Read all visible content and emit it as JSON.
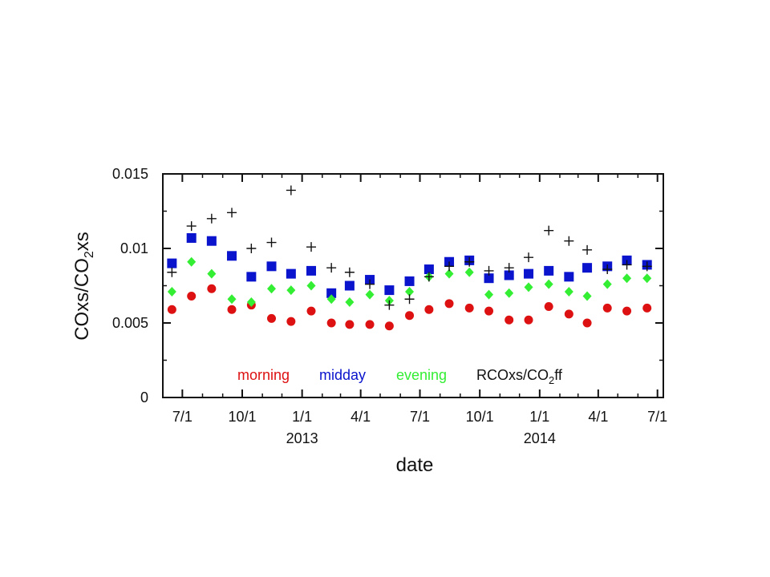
{
  "chart_data": {
    "type": "scatter",
    "title": "",
    "xlabel": "date",
    "ylabel_main": "COxs/CO",
    "ylabel_sub": "2",
    "ylabel_tail": "xs",
    "xlim": [
      "2012-06-01",
      "2014-07-10"
    ],
    "ylim": [
      0,
      0.015
    ],
    "y_ticks": [
      {
        "value": 0,
        "label": "0"
      },
      {
        "value": 0.005,
        "label": "0.005"
      },
      {
        "value": 0.01,
        "label": "0.01"
      },
      {
        "value": 0.015,
        "label": "0.015"
      }
    ],
    "x_ticks": [
      {
        "date": "2012-07-01",
        "label": "7/1"
      },
      {
        "date": "2012-10-01",
        "label": "10/1"
      },
      {
        "date": "2013-01-01",
        "label": "1/1"
      },
      {
        "date": "2013-04-01",
        "label": "4/1"
      },
      {
        "date": "2013-07-01",
        "label": "7/1"
      },
      {
        "date": "2013-10-01",
        "label": "10/1"
      },
      {
        "date": "2014-01-01",
        "label": "1/1"
      },
      {
        "date": "2014-04-01",
        "label": "4/1"
      },
      {
        "date": "2014-07-01",
        "label": "7/1"
      }
    ],
    "year_labels": [
      {
        "date": "2013-01-01",
        "label": "2013"
      },
      {
        "date": "2014-01-01",
        "label": "2014"
      }
    ],
    "grid": false,
    "legend_position": "bottom-inside",
    "x": [
      "2012-06-15",
      "2012-07-15",
      "2012-08-15",
      "2012-09-15",
      "2012-10-15",
      "2012-11-15",
      "2012-12-15",
      "2013-01-15",
      "2013-02-15",
      "2013-03-15",
      "2013-04-15",
      "2013-05-15",
      "2013-06-15",
      "2013-07-15",
      "2013-08-15",
      "2013-09-15",
      "2013-10-15",
      "2013-11-15",
      "2013-12-15",
      "2014-01-15",
      "2014-02-15",
      "2014-03-15",
      "2014-04-15",
      "2014-05-15",
      "2014-06-15"
    ],
    "series": [
      {
        "name": "morning",
        "color": "#dd1111",
        "marker": "circle",
        "values": [
          0.0059,
          0.0068,
          0.0073,
          0.0059,
          0.0062,
          0.0053,
          0.0051,
          0.0058,
          0.005,
          0.0049,
          0.0049,
          0.0048,
          0.0055,
          0.0059,
          0.0063,
          0.006,
          0.0058,
          0.0052,
          0.0052,
          0.0061,
          0.0056,
          0.005,
          0.006,
          0.0058,
          0.006
        ]
      },
      {
        "name": "midday",
        "color": "#0a14cc",
        "marker": "square",
        "values": [
          0.009,
          0.0107,
          0.0105,
          0.0095,
          0.0081,
          0.0088,
          0.0083,
          0.0085,
          0.007,
          0.0075,
          0.0079,
          0.0072,
          0.0078,
          0.0086,
          0.0091,
          0.0092,
          0.008,
          0.0082,
          0.0083,
          0.0085,
          0.0081,
          0.0087,
          0.0088,
          0.0092,
          0.0089
        ]
      },
      {
        "name": "evening",
        "color": "#33ee33",
        "marker": "diamond",
        "values": [
          0.0071,
          0.0091,
          0.0083,
          0.0066,
          0.0064,
          0.0073,
          0.0072,
          0.0075,
          0.0066,
          0.0064,
          0.0069,
          0.0065,
          0.0071,
          0.0081,
          0.0083,
          0.0084,
          0.0069,
          0.007,
          0.0074,
          0.0076,
          0.0071,
          0.0068,
          0.0076,
          0.008,
          0.008
        ]
      },
      {
        "name_main": "RCOxs/CO",
        "name_sub": "2",
        "name_tail": "ff",
        "color": "#111111",
        "marker": "plus",
        "values": [
          0.0084,
          0.0115,
          0.012,
          0.0124,
          0.01,
          0.0104,
          0.0139,
          0.0101,
          0.0087,
          0.0084,
          0.0076,
          0.0062,
          0.0066,
          0.0081,
          0.0088,
          0.0091,
          0.0085,
          0.0087,
          0.0094,
          0.0112,
          0.0105,
          0.0099,
          0.0086,
          0.0089,
          0.0088
        ]
      }
    ]
  }
}
